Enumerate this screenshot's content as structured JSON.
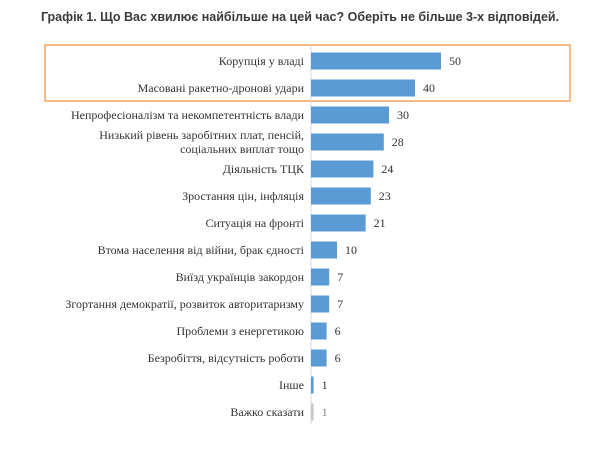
{
  "title": "Графік 1. Що Вас хвилює найбільше на цей час? Оберіть не більше 3-х відповідей.",
  "colors": {
    "bar": "#5b9bd5",
    "bar_muted": "#c8c8c8",
    "highlight": "#f4a460"
  },
  "chart_data": {
    "type": "bar",
    "orientation": "horizontal",
    "title": "Графік 1. Що Вас хвилює найбільше на цей час? Оберіть не більше 3-х відповідей.",
    "xlabel": "",
    "ylabel": "",
    "xlim": [
      0,
      50
    ],
    "grid": false,
    "legend": "none",
    "highlighted_categories": [
      "Корупція у владі",
      "Масовані ракетно-дронові удари"
    ],
    "categories": [
      [
        "Корупція у владі"
      ],
      [
        "Масовані ракетно-дронові удари"
      ],
      [
        "Непрофесіоналізм та некомпетентність влади"
      ],
      [
        "Низький рівень заробітних плат, пенсій,",
        "соціальних виплат тощо"
      ],
      [
        "Діяльність ТЦК"
      ],
      [
        "Зростання цін, інфляція"
      ],
      [
        "Ситуація на фронті"
      ],
      [
        "Втома населення від війни, брак єдності"
      ],
      [
        "Виїзд українців закордон"
      ],
      [
        "Згортання демократії, розвиток авторитаризму"
      ],
      [
        "Проблеми з енергетикою"
      ],
      [
        "Безробіття, відсутність роботи"
      ],
      [
        "Інше"
      ],
      [
        "Важко сказати"
      ]
    ],
    "values": [
      50,
      40,
      30,
      28,
      24,
      23,
      21,
      10,
      7,
      7,
      6,
      6,
      1,
      1
    ],
    "muted_index": 13
  }
}
